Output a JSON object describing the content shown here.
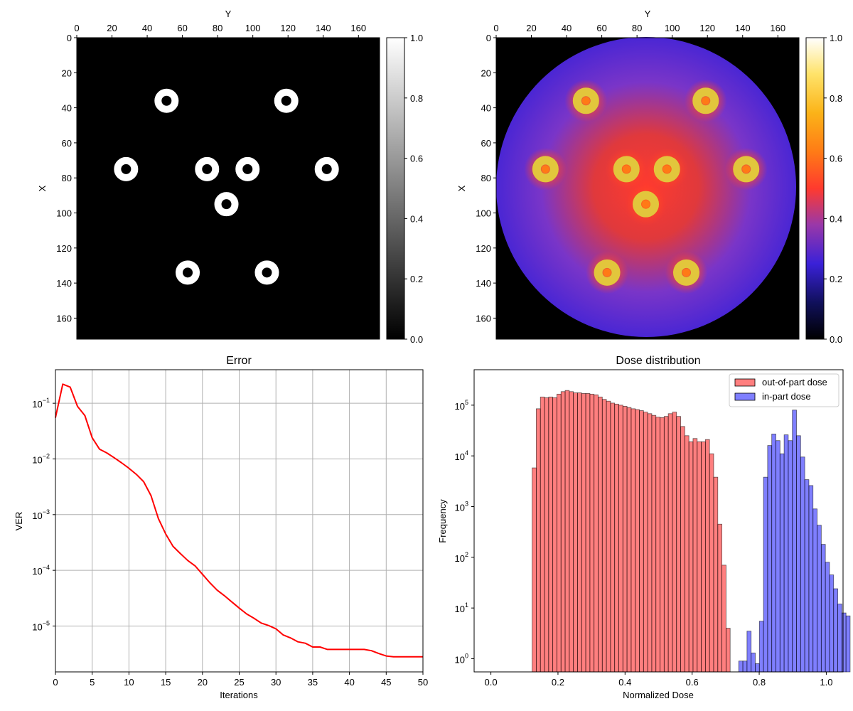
{
  "chart_data": [
    {
      "type": "heatmap",
      "xlabel": "Y",
      "ylabel": "X",
      "xlim": [
        0,
        172
      ],
      "ylim": [
        172,
        0
      ],
      "x_ticks": [
        0,
        20,
        40,
        60,
        80,
        100,
        120,
        140,
        160
      ],
      "y_ticks": [
        0,
        20,
        40,
        60,
        80,
        100,
        120,
        140,
        160
      ],
      "x_axis_position": "top",
      "colormap": "gray",
      "colorbar": {
        "min": 0.0,
        "max": 1.0,
        "ticks": [
          "0.0",
          "0.2",
          "0.4",
          "0.6",
          "0.8",
          "1.0"
        ]
      },
      "background_value": 0.0,
      "rings": [
        {
          "x": 51,
          "y": 36,
          "value": 1.0
        },
        {
          "x": 119,
          "y": 36,
          "value": 1.0
        },
        {
          "x": 28,
          "y": 75,
          "value": 1.0
        },
        {
          "x": 74,
          "y": 75,
          "value": 1.0
        },
        {
          "x": 97,
          "y": 75,
          "value": 1.0
        },
        {
          "x": 142,
          "y": 75,
          "value": 1.0
        },
        {
          "x": 85,
          "y": 95,
          "value": 1.0
        },
        {
          "x": 63,
          "y": 134,
          "value": 1.0
        },
        {
          "x": 108,
          "y": 134,
          "value": 1.0
        }
      ]
    },
    {
      "type": "heatmap",
      "xlabel": "Y",
      "ylabel": "X",
      "xlim": [
        0,
        172
      ],
      "ylim": [
        172,
        0
      ],
      "x_ticks": [
        0,
        20,
        40,
        60,
        80,
        100,
        120,
        140,
        160
      ],
      "y_ticks": [
        0,
        20,
        40,
        60,
        80,
        100,
        120,
        140,
        160
      ],
      "x_axis_position": "top",
      "colormap": "gnuplot2",
      "colorbar": {
        "min": 0.0,
        "max": 1.0,
        "ticks": [
          "0.0",
          "0.2",
          "0.4",
          "0.6",
          "0.8",
          "1.0"
        ]
      },
      "disk": {
        "center_x": 85,
        "center_y": 85,
        "radius": 85,
        "value": 0.3
      },
      "rings": [
        {
          "x": 51,
          "y": 36,
          "value": 0.8
        },
        {
          "x": 119,
          "y": 36,
          "value": 0.8
        },
        {
          "x": 28,
          "y": 75,
          "value": 0.8
        },
        {
          "x": 74,
          "y": 75,
          "value": 0.8
        },
        {
          "x": 97,
          "y": 75,
          "value": 0.8
        },
        {
          "x": 142,
          "y": 75,
          "value": 0.8
        },
        {
          "x": 85,
          "y": 95,
          "value": 0.8
        },
        {
          "x": 63,
          "y": 134,
          "value": 0.8
        },
        {
          "x": 108,
          "y": 134,
          "value": 0.8
        }
      ]
    },
    {
      "type": "line",
      "title": "Error",
      "xlabel": "Iterations",
      "ylabel": "VER",
      "xlim": [
        0,
        50
      ],
      "ylim": [
        1.5e-06,
        0.4
      ],
      "yscale": "log",
      "grid": true,
      "x_ticks": [
        0,
        5,
        10,
        15,
        20,
        25,
        30,
        35,
        40,
        45,
        50
      ],
      "y_ticks": [
        {
          "value": 1e-05,
          "base": "10",
          "exp": "−5"
        },
        {
          "value": 0.0001,
          "base": "10",
          "exp": "−4"
        },
        {
          "value": 0.001,
          "base": "10",
          "exp": "−3"
        },
        {
          "value": 0.01,
          "base": "10",
          "exp": "−2"
        },
        {
          "value": 0.1,
          "base": "10",
          "exp": "−1"
        }
      ],
      "series": [
        {
          "color": "#ff0000",
          "x": [
            0,
            1,
            2,
            3,
            4,
            5,
            6,
            7,
            8,
            9,
            10,
            11,
            12,
            13,
            14,
            15,
            16,
            17,
            18,
            19,
            20,
            21,
            22,
            23,
            24,
            25,
            26,
            27,
            28,
            29,
            30,
            31,
            32,
            33,
            34,
            35,
            36,
            37,
            38,
            39,
            40,
            41,
            42,
            43,
            44,
            45,
            46,
            47,
            48,
            49,
            50
          ],
          "y": [
            0.055,
            0.22,
            0.195,
            0.088,
            0.06,
            0.024,
            0.015,
            0.0128,
            0.0105,
            0.0085,
            0.0068,
            0.0053,
            0.0039,
            0.0022,
            0.00085,
            0.00045,
            0.00027,
            0.0002,
            0.00015,
            0.00012,
            8.5e-05,
            6e-05,
            4.4e-05,
            3.5e-05,
            2.7e-05,
            2.1e-05,
            1.65e-05,
            1.38e-05,
            1.13e-05,
            1.02e-05,
            8.9e-06,
            6.9e-06,
            6.1e-06,
            5.2e-06,
            4.9e-06,
            4.2e-06,
            4.2e-06,
            3.8e-06,
            3.8e-06,
            3.8e-06,
            3.8e-06,
            3.8e-06,
            3.8e-06,
            3.6e-06,
            3.2e-06,
            2.9e-06,
            2.8e-06,
            2.8e-06,
            2.8e-06,
            2.8e-06,
            2.8e-06
          ]
        }
      ]
    },
    {
      "type": "bar",
      "title": "Dose distribution",
      "xlabel": "Normalized Dose",
      "ylabel": "Frequency",
      "xlim": [
        -0.05,
        1.05
      ],
      "ylim": [
        0.55,
        500000
      ],
      "yscale": "log",
      "x_ticks": [
        "0.0",
        "0.2",
        "0.4",
        "0.6",
        "0.8",
        "1.0"
      ],
      "y_ticks": [
        {
          "value": 1,
          "base": "10",
          "exp": "0"
        },
        {
          "value": 10,
          "base": "10",
          "exp": "1"
        },
        {
          "value": 100,
          "base": "10",
          "exp": "2"
        },
        {
          "value": 1000,
          "base": "10",
          "exp": "3"
        },
        {
          "value": 10000,
          "base": "10",
          "exp": "4"
        },
        {
          "value": 100000,
          "base": "10",
          "exp": "5"
        }
      ],
      "legend": {
        "position": "top-right"
      },
      "series": [
        {
          "name": "out-of-part dose",
          "color": "#ff0000",
          "bin_start": 0.123,
          "bin_width": 0.0123,
          "counts": [
            5800,
            85000,
            145000,
            140000,
            145000,
            140000,
            165000,
            185000,
            195000,
            185000,
            175000,
            175000,
            170000,
            170000,
            165000,
            160000,
            145000,
            130000,
            120000,
            110000,
            105000,
            100000,
            95000,
            90000,
            85000,
            82000,
            78000,
            73000,
            68000,
            63000,
            58000,
            57000,
            60000,
            68000,
            73000,
            60000,
            38000,
            25000,
            19000,
            22000,
            19000,
            19000,
            21000,
            11000,
            3800,
            450,
            70,
            4
          ]
        },
        {
          "name": "in-part dose",
          "color": "#0000ff",
          "bin_start": 0.739,
          "bin_width": 0.0123,
          "counts": [
            0.9,
            0.9,
            3.5,
            1.3,
            0.8,
            5.5,
            3800,
            16000,
            27000,
            20000,
            11000,
            26000,
            20000,
            80000,
            25000,
            9500,
            3400,
            2600,
            900,
            430,
            180,
            80,
            45,
            24,
            12,
            8,
            7
          ]
        }
      ]
    }
  ]
}
